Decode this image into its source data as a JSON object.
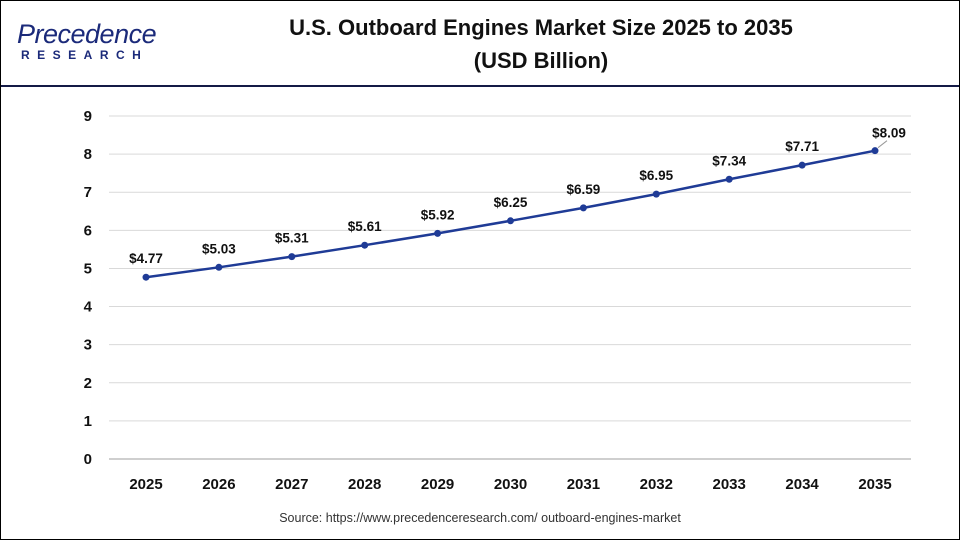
{
  "logo": {
    "line1": "Precedence",
    "line2": "RESEARCH"
  },
  "title_line1": "U.S. Outboard Engines Market Size 2025 to 2035",
  "title_line2": "(USD Billion)",
  "source": "Source: https://www.precedenceresearch.com/ outboard-engines-market",
  "colors": {
    "line": "#1f3b96",
    "marker": "#1f3b96",
    "grid": "#d9d9d9",
    "header_rule": "#141a46"
  },
  "chart_data": {
    "type": "line",
    "title": "U.S. Outboard Engines Market Size 2025 to 2035 (USD Billion)",
    "categories": [
      "2025",
      "2026",
      "2027",
      "2028",
      "2029",
      "2030",
      "2031",
      "2032",
      "2033",
      "2034",
      "2035"
    ],
    "values": [
      4.77,
      5.03,
      5.31,
      5.61,
      5.92,
      6.25,
      6.59,
      6.95,
      7.34,
      7.71,
      8.09
    ],
    "data_labels": [
      "$4.77",
      "$5.03",
      "$5.31",
      "$5.61",
      "$5.92",
      "$6.25",
      "$6.59",
      "$6.95",
      "$7.34",
      "$7.71",
      "$8.09"
    ],
    "yticks": [
      "0",
      "1",
      "2",
      "3",
      "4",
      "5",
      "6",
      "7",
      "8",
      "9"
    ],
    "ylim": [
      0,
      9
    ],
    "grid": true,
    "legend": "none"
  }
}
